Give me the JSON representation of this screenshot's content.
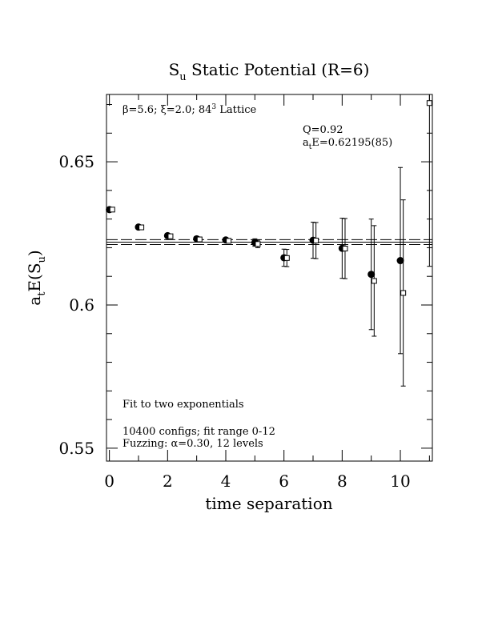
{
  "chart_data": {
    "type": "scatter",
    "title_main": "S",
    "title_sub": "u",
    "title_rest": " Static Potential (R=6)",
    "xlabel": "time separation",
    "ylabel_a": "a",
    "ylabel_t": "t",
    "ylabel_E": "E(S",
    "ylabel_u": "u",
    "ylabel_close": ")",
    "xlim": [
      -0.1,
      11.1
    ],
    "ylim": [
      0.5455,
      0.6735
    ],
    "x_ticks": [
      0,
      2,
      4,
      6,
      8,
      10
    ],
    "x_tick_labels": [
      "0",
      "2",
      "4",
      "6",
      "8",
      "10"
    ],
    "y_ticks": [
      0.55,
      0.6,
      0.65
    ],
    "y_tick_labels": [
      "0.55",
      "0.6",
      "0.65"
    ],
    "annotation_lattice_beta": "β=5.6; ξ=2.0; 8",
    "annotation_lattice_pow": "4",
    "annotation_lattice_pow2": "3",
    "annotation_lattice_end": " Lattice",
    "annotation_q": "Q=0.92",
    "annotation_ae_a": "a",
    "annotation_ae_t": "t",
    "annotation_ae_val": "E=0.62195(85)",
    "annotation_fit": "Fit to two exponentials",
    "annotation_configs": "10400 configs; fit range 0-12",
    "annotation_fuzzing": "Fuzzing: α=0.30, 12 levels",
    "fit_value": 0.62195,
    "fit_error": 0.00085,
    "fit_range": [
      -0.1,
      11.1
    ],
    "series": [
      {
        "marker": "filled-circle",
        "points": [
          {
            "x": 0,
            "y": 0.6333,
            "err": 0.0003
          },
          {
            "x": 1,
            "y": 0.6272,
            "err": 0.0004
          },
          {
            "x": 2,
            "y": 0.6242,
            "err": 0.0004
          },
          {
            "x": 3,
            "y": 0.6231,
            "err": 0.0005
          },
          {
            "x": 4,
            "y": 0.6227,
            "err": 0.0007
          },
          {
            "x": 5,
            "y": 0.6218,
            "err": 0.0013
          },
          {
            "x": 6,
            "y": 0.6165,
            "err": 0.003
          },
          {
            "x": 7,
            "y": 0.6226,
            "err": 0.0063
          },
          {
            "x": 8,
            "y": 0.6198,
            "err": 0.0105
          },
          {
            "x": 9,
            "y": 0.6107,
            "err": 0.0193
          },
          {
            "x": 10,
            "y": 0.6155,
            "err": 0.0325
          }
        ]
      },
      {
        "marker": "open-square",
        "points": [
          {
            "x": 0.1,
            "y": 0.6333,
            "err": 0.0003
          },
          {
            "x": 1.1,
            "y": 0.6271,
            "err": 0.0004
          },
          {
            "x": 2.1,
            "y": 0.624,
            "err": 0.0004
          },
          {
            "x": 3.1,
            "y": 0.6229,
            "err": 0.0005
          },
          {
            "x": 4.1,
            "y": 0.6224,
            "err": 0.0007
          },
          {
            "x": 5.1,
            "y": 0.6213,
            "err": 0.0013
          },
          {
            "x": 6.1,
            "y": 0.6164,
            "err": 0.003
          },
          {
            "x": 7.1,
            "y": 0.6225,
            "err": 0.0063
          },
          {
            "x": 8.1,
            "y": 0.6197,
            "err": 0.0105
          },
          {
            "x": 9.1,
            "y": 0.6084,
            "err": 0.0193
          },
          {
            "x": 10.1,
            "y": 0.6042,
            "err": 0.0325
          },
          {
            "x": 11.0,
            "y": 0.6705,
            "err": 0.057
          }
        ]
      }
    ]
  }
}
